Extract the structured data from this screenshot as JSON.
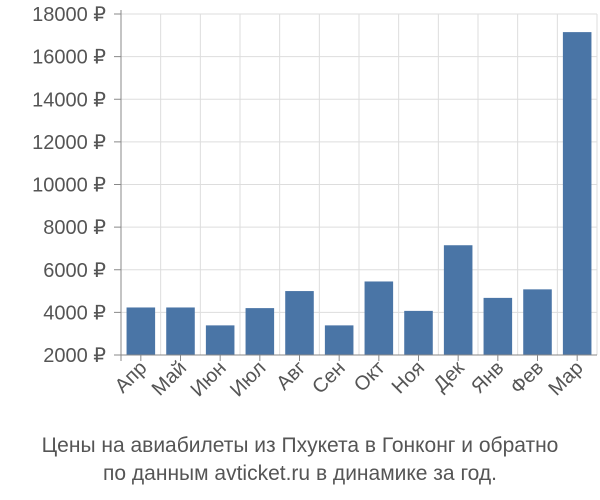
{
  "chart_data": {
    "type": "bar",
    "categories": [
      "Апр",
      "Май",
      "Июн",
      "Июл",
      "Авг",
      "Сен",
      "Окт",
      "Ноя",
      "Дек",
      "Янв",
      "Фев",
      "Мар"
    ],
    "values": [
      4230,
      4230,
      3390,
      4200,
      5000,
      3390,
      5450,
      4070,
      7150,
      4680,
      5080,
      17150
    ],
    "ylim": [
      2000,
      18000
    ],
    "yticks": [
      2000,
      4000,
      6000,
      8000,
      10000,
      12000,
      14000,
      16000,
      18000
    ],
    "ytick_labels": [
      "2000 ₽",
      "4000 ₽",
      "6000 ₽",
      "8000 ₽",
      "10000 ₽",
      "12000 ₽",
      "14000 ₽",
      "16000 ₽",
      "18000 ₽"
    ],
    "grid": true,
    "bar_color": "#4a75a6",
    "xlabel": "",
    "ylabel": ""
  },
  "caption": {
    "line1": "Цены на авиабилеты из Пхукета в Гонконг и обратно",
    "line2": "по данным avticket.ru в динамике за год."
  }
}
